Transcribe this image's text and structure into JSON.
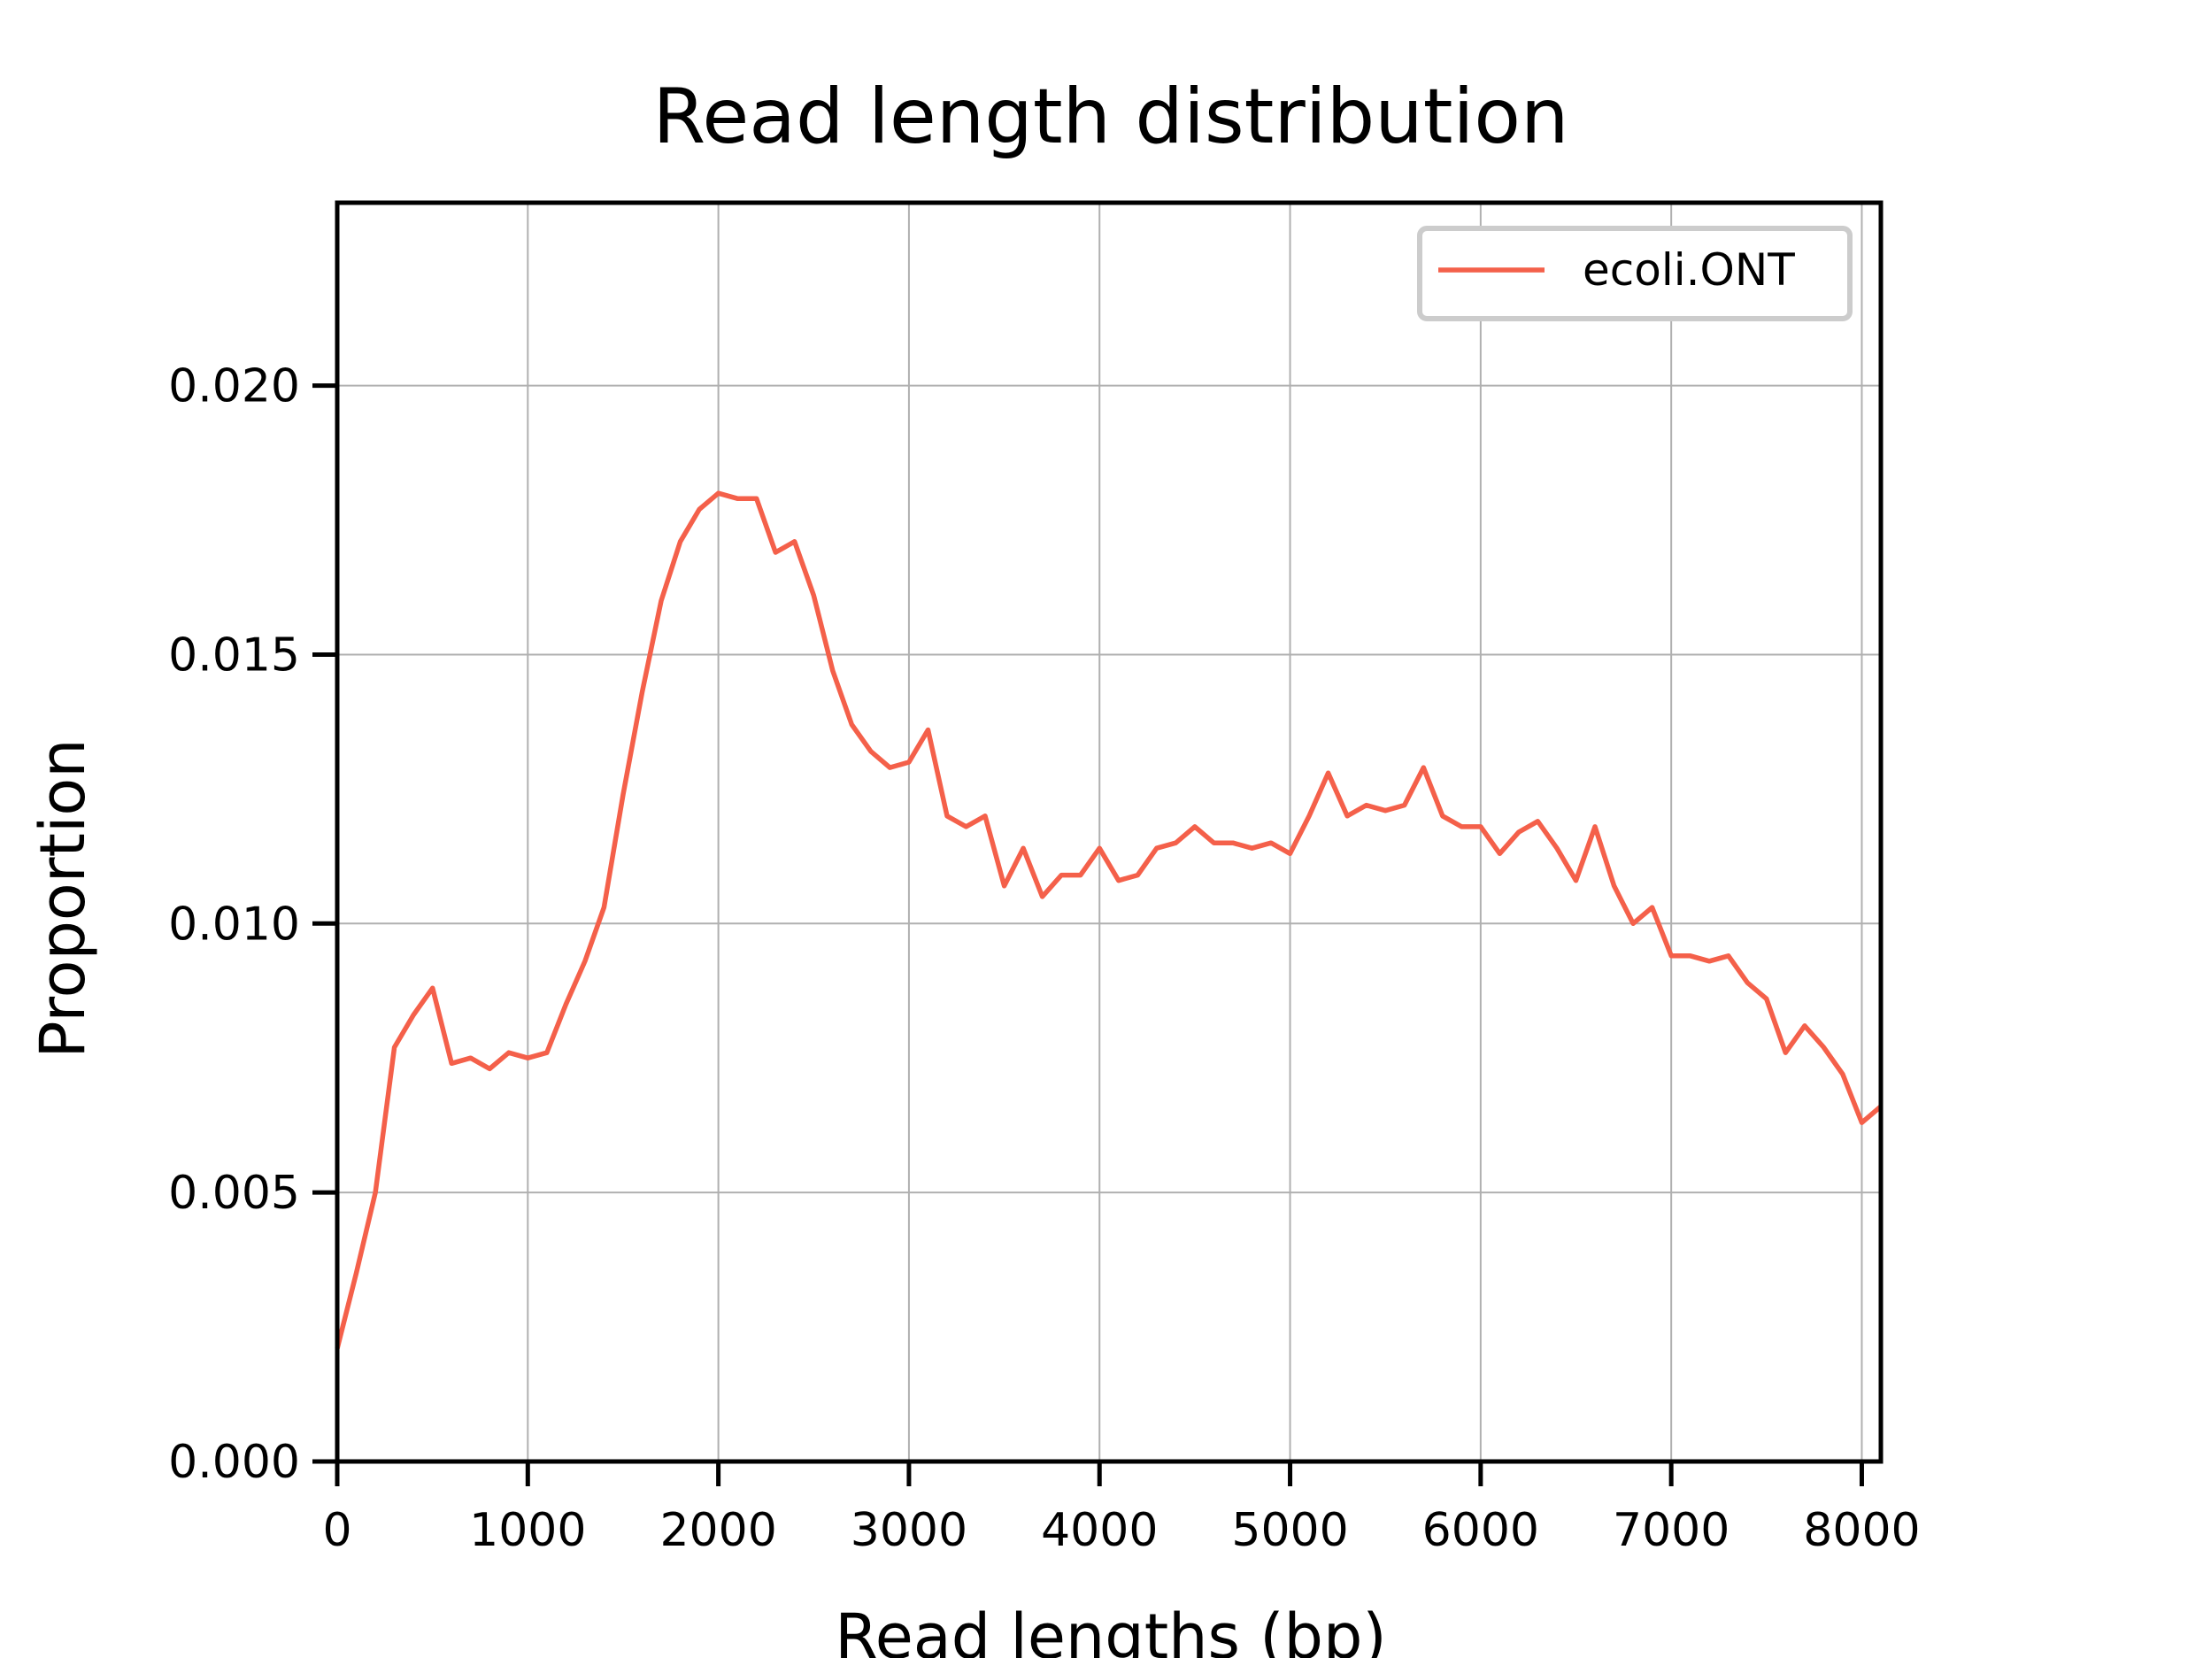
{
  "chart_data": {
    "type": "line",
    "title": "Read length distribution",
    "xlabel": "Read lengths (bp)",
    "ylabel": "Proportion",
    "xlim": [
      0,
      8100
    ],
    "ylim": [
      0,
      0.0234
    ],
    "xticks": [
      0,
      1000,
      2000,
      3000,
      4000,
      5000,
      6000,
      7000,
      8000
    ],
    "xtick_labels": [
      "0",
      "1000",
      "2000",
      "3000",
      "4000",
      "5000",
      "6000",
      "7000",
      "8000"
    ],
    "yticks": [
      0,
      0.005,
      0.01,
      0.015,
      0.02
    ],
    "ytick_labels": [
      "0.000",
      "0.005",
      "0.010",
      "0.015",
      "0.020"
    ],
    "grid": true,
    "legend": "top-right",
    "series": [
      {
        "name": "ecoli.ONT",
        "color": "#f4604a",
        "x": [
          0,
          100,
          200,
          300,
          400,
          500,
          600,
          700,
          800,
          900,
          1000,
          1100,
          1200,
          1300,
          1400,
          1500,
          1600,
          1700,
          1800,
          1900,
          2000,
          2100,
          2200,
          2300,
          2400,
          2500,
          2600,
          2700,
          2800,
          2900,
          3000,
          3100,
          3200,
          3300,
          3400,
          3500,
          3600,
          3700,
          3800,
          3900,
          4000,
          4100,
          4200,
          4300,
          4400,
          4500,
          4600,
          4700,
          4800,
          4900,
          5000,
          5100,
          5200,
          5300,
          5400,
          5500,
          5600,
          5700,
          5800,
          5900,
          6000,
          6100,
          6200,
          6300,
          6400,
          6500,
          6600,
          6700,
          6800,
          6900,
          7000,
          7100,
          7200,
          7300,
          7400,
          7500,
          7600,
          7700,
          7800,
          7900,
          8000,
          8100
        ],
        "y": [
          0.0021,
          0.0035,
          0.005,
          0.0077,
          0.0083,
          0.0088,
          0.0074,
          0.0075,
          0.0073,
          0.0076,
          0.0075,
          0.0076,
          0.0085,
          0.0093,
          0.0103,
          0.0124,
          0.0143,
          0.016,
          0.0171,
          0.0177,
          0.018,
          0.0179,
          0.0179,
          0.0169,
          0.0171,
          0.0161,
          0.0147,
          0.0137,
          0.0132,
          0.0129,
          0.013,
          0.0136,
          0.012,
          0.0118,
          0.012,
          0.0107,
          0.0114,
          0.0105,
          0.0109,
          0.0109,
          0.0114,
          0.0108,
          0.0109,
          0.0114,
          0.0115,
          0.0118,
          0.0115,
          0.0115,
          0.0114,
          0.0115,
          0.0113,
          0.012,
          0.0128,
          0.012,
          0.0122,
          0.0121,
          0.0122,
          0.0129,
          0.012,
          0.0118,
          0.0118,
          0.0113,
          0.0117,
          0.0119,
          0.0114,
          0.0108,
          0.0118,
          0.0107,
          0.01,
          0.0103,
          0.0094,
          0.0094,
          0.0093,
          0.0094,
          0.0089,
          0.0086,
          0.0076,
          0.0081,
          0.0077,
          0.0072,
          0.0063,
          0.0066
        ]
      }
    ]
  }
}
